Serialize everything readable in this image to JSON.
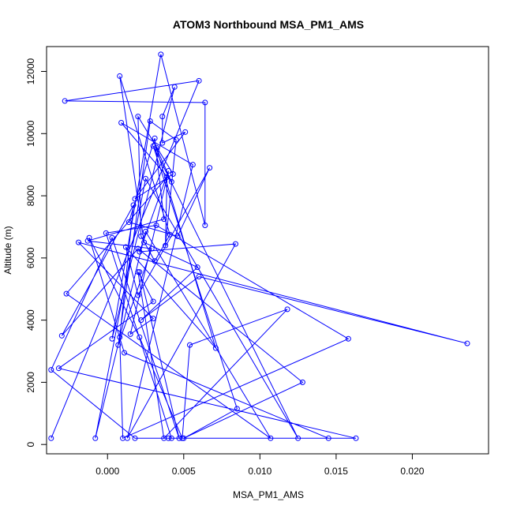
{
  "chart_data": {
    "type": "line",
    "title": "ATOM3 Northbound MSA_PM1_AMS",
    "xlabel": "MSA_PM1_AMS",
    "ylabel": "Altitude (m)",
    "xlim": [
      -0.004,
      0.025
    ],
    "ylim": [
      -300,
      12800
    ],
    "xticks": [
      0.0,
      0.005,
      0.01,
      0.015,
      0.02
    ],
    "xtick_labels": [
      "0.000",
      "0.005",
      "0.010",
      "0.015",
      "0.020"
    ],
    "yticks": [
      0,
      2000,
      4000,
      6000,
      8000,
      10000,
      12000
    ],
    "ytick_labels": [
      "0",
      "2000",
      "4000",
      "6000",
      "8000",
      "10000",
      "12000"
    ],
    "grid": false,
    "series": [
      {
        "color": "#0000ff",
        "marker": "open-circle",
        "line": true,
        "x": [
          -0.0037,
          0.006,
          -0.0028,
          0.0064,
          0.0064,
          0.0035,
          0.0003,
          0.0044,
          0.0036,
          0.0036,
          0.0051,
          0.0018,
          0.0043,
          0.002,
          0.0022,
          0.0031,
          0.0041,
          0.0008,
          0.0024,
          0.0059,
          0.0022,
          0.006,
          0.0236,
          -0.0019,
          0.003,
          0.0015,
          0.004,
          0.0021,
          0.0084,
          0.0013,
          0.0056,
          0.0009,
          0.0042,
          0.0032,
          0.0071,
          0.0012,
          0.002,
          0.0067,
          0.0046,
          0.0014,
          0.0031,
          0.0037,
          -0.0013,
          0.0029,
          0.0007,
          0.0028,
          0.0045,
          0.0038,
          0.0039,
          -0.0027,
          0.0107,
          0.0025,
          -0.0008,
          0.0025,
          0.0125,
          0.003,
          0.0085,
          0.005,
          0.0128,
          0.002,
          -0.003,
          0.0017,
          0.0008,
          0.001,
          0.0158,
          0.0032,
          -0.0001,
          0.0042,
          0.0145,
          0.0011,
          -0.0012,
          0.0021,
          0.0049,
          0.0054,
          0.0118,
          0.0037,
          0.002,
          0.003,
          -0.0032,
          0.0163,
          0.004,
          0.0018,
          -0.0037,
          0.0003,
          0.0047,
          0.0021
        ],
        "y": [
          200,
          11700,
          11050,
          11000,
          7050,
          12550,
          3400,
          11500,
          10550,
          9700,
          10050,
          7900,
          8700,
          10550,
          6700,
          5900,
          6750,
          11850,
          6500,
          5700,
          4000,
          5400,
          3250,
          6500,
          4050,
          3550,
          8800,
          6200,
          6450,
          200,
          9000,
          10350,
          8450,
          9550,
          3100,
          6350,
          4800,
          8900,
          6700,
          7150,
          9850,
          7250,
          6550,
          6300,
          3200,
          10400,
          9800,
          6400,
          8600,
          4850,
          200,
          6850,
          200,
          8550,
          200,
          9600,
          1150,
          200,
          2000,
          6300,
          3500,
          7700,
          3450,
          200,
          3400,
          7050,
          6800,
          200,
          200,
          2950,
          6650,
          3450,
          200,
          3200,
          4350,
          200,
          5550,
          4600,
          2450,
          200,
          200,
          200,
          2400,
          6650,
          200,
          5550
        ]
      }
    ]
  }
}
